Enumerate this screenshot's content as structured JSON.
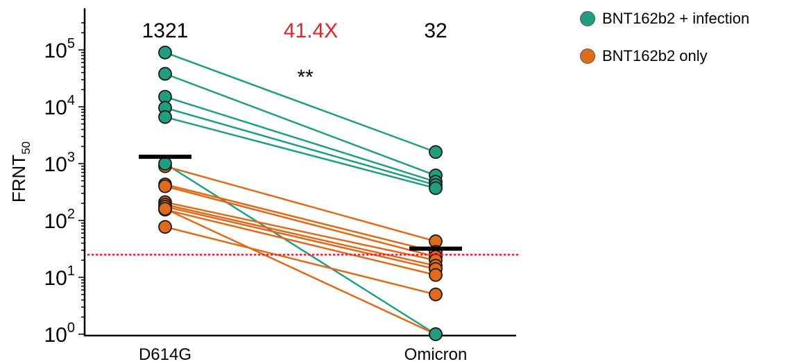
{
  "chart_data": {
    "type": "scatter",
    "y_scale": "log",
    "ylim": [
      1,
      300000
    ],
    "ylabel": {
      "main": "FRNT",
      "sub": "50"
    },
    "xlabel": "",
    "categories": [
      "D614G",
      "Omicron"
    ],
    "y_tick_labels": [
      {
        "value": 1,
        "base": "10",
        "exp": "0"
      },
      {
        "value": 10,
        "base": "10",
        "exp": "1"
      },
      {
        "value": 100,
        "base": "10",
        "exp": "2"
      },
      {
        "value": 1000,
        "base": "10",
        "exp": "3"
      },
      {
        "value": 10000,
        "base": "10",
        "exp": "4"
      },
      {
        "value": 100000,
        "base": "10",
        "exp": "5"
      }
    ],
    "colors": {
      "infection": "#1f9e80",
      "only": "#e0691a",
      "threshold": "#e01f2a",
      "fold": "#e8202a"
    },
    "legend": {
      "position": "top-right",
      "items": [
        {
          "key": "infection",
          "label": "BNT162b2 + infection"
        },
        {
          "key": "only",
          "label": "BNT162b2 only"
        }
      ]
    },
    "series": [
      {
        "name": "BNT162b2 + infection",
        "key": "infection",
        "pairs": [
          [
            90000,
            1600
          ],
          [
            38000,
            620
          ],
          [
            15000,
            480
          ],
          [
            9600,
            420
          ],
          [
            6600,
            370
          ],
          [
            1000,
            1
          ]
        ]
      },
      {
        "name": "BNT162b2 only",
        "key": "only",
        "pairs": [
          [
            900,
            43
          ],
          [
            430,
            28
          ],
          [
            400,
            23
          ],
          [
            210,
            20
          ],
          [
            190,
            16
          ],
          [
            175,
            14
          ],
          [
            155,
            11
          ],
          [
            77,
            5
          ],
          [
            160,
            1
          ]
        ]
      }
    ],
    "geometric_means": [
      1321,
      32
    ],
    "detection_limit": 25,
    "annotations": {
      "gmt_labels": [
        "1321",
        "32"
      ],
      "fold_change": "41.4X",
      "significance": "**"
    }
  }
}
